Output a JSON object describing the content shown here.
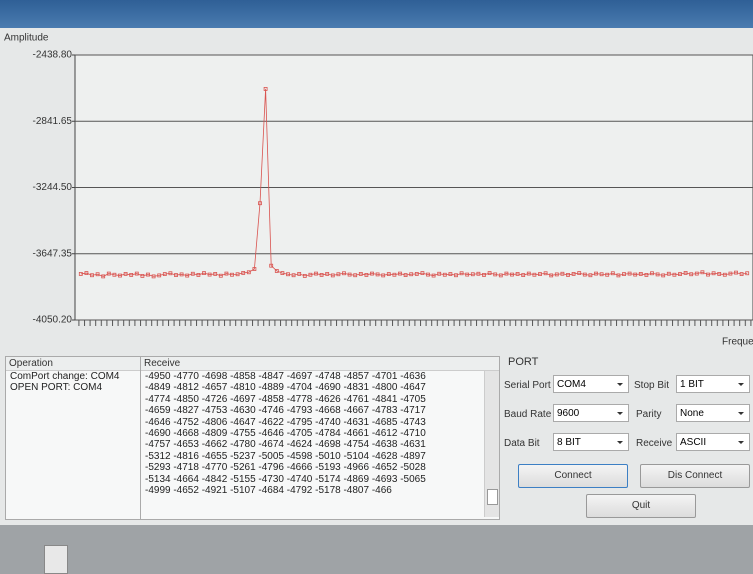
{
  "chart_data": {
    "type": "line",
    "y_label": "Amplitude",
    "x_label": "Freque",
    "color": "#d9534f",
    "ylim": [
      -4050.2,
      -2438.8
    ],
    "yticks": [
      {
        "value": -4050.2,
        "label": "-4050.20"
      },
      {
        "value": -3647.35,
        "label": "-3647.35"
      },
      {
        "value": -3244.5,
        "label": "-3244.50"
      },
      {
        "value": -2841.65,
        "label": "-2841.65"
      },
      {
        "value": -2438.8,
        "label": "-2438.80"
      }
    ],
    "grid": true,
    "values": [
      -3770,
      -3765,
      -3778,
      -3772,
      -3785,
      -3768,
      -3775,
      -3780,
      -3770,
      -3776,
      -3768,
      -3782,
      -3774,
      -3785,
      -3779,
      -3771,
      -3766,
      -3777,
      -3773,
      -3780,
      -3769,
      -3776,
      -3765,
      -3774,
      -3770,
      -3781,
      -3768,
      -3775,
      -3772,
      -3764,
      -3760,
      -3740,
      -3340,
      -2645,
      -3720,
      -3752,
      -3765,
      -3772,
      -3778,
      -3770,
      -3782,
      -3775,
      -3768,
      -3776,
      -3770,
      -3779,
      -3772,
      -3766,
      -3774,
      -3778,
      -3770,
      -3776,
      -3768,
      -3773,
      -3779,
      -3771,
      -3775,
      -3768,
      -3777,
      -3772,
      -3770,
      -3765,
      -3774,
      -3780,
      -3769,
      -3775,
      -3771,
      -3778,
      -3766,
      -3774,
      -3772,
      -3769,
      -3776,
      -3765,
      -3773,
      -3779,
      -3768,
      -3774,
      -3770,
      -3777,
      -3768,
      -3775,
      -3771,
      -3766,
      -3779,
      -3773,
      -3769,
      -3776,
      -3770,
      -3765,
      -3774,
      -3778,
      -3768,
      -3772,
      -3775,
      -3766,
      -3779,
      -3771,
      -3768,
      -3774,
      -3770,
      -3776,
      -3766,
      -3773,
      -3779,
      -3769,
      -3775,
      -3771,
      -3764,
      -3772,
      -3768,
      -3760,
      -3774,
      -3766,
      -3770,
      -3775,
      -3768,
      -3762,
      -3771,
      -3766
    ]
  },
  "operation": {
    "header": "Operation",
    "lines": [
      "ComPort change: COM4",
      "OPEN PORT: COM4"
    ]
  },
  "receive": {
    "header": "Receive",
    "lines": [
      "-4950 -4770 -4698 -4858 -4847 -4697 -4748 -4857 -4701 -4636",
      "-4849 -4812 -4657 -4810 -4889 -4704 -4690 -4831 -4800 -4647",
      "-4774 -4850 -4726 -4697 -4858 -4778 -4626 -4761 -4841 -4705",
      "-4659 -4827 -4753 -4630 -4746 -4793 -4668 -4667 -4783 -4717",
      "-4646 -4752 -4806 -4647 -4622 -4795 -4740 -4631 -4685 -4743",
      "-4690 -4668 -4809 -4755 -4646 -4705 -4784 -4661 -4612 -4710",
      "-4757 -4653 -4662 -4780 -4674 -4624 -4698 -4754 -4638 -4631",
      "-5312 -4816 -4655 -5237 -5005 -4598 -5010 -5104 -4628 -4897",
      "-5293 -4718 -4770 -5261 -4796 -4666 -5193 -4966 -4652 -5028",
      "-5134 -4664 -4842 -5155 -4730 -4740 -5174 -4869 -4693 -5065",
      "-4999 -4652 -4921 -5107 -4684 -4792 -5178 -4807 -466"
    ]
  },
  "port": {
    "header": "PORT",
    "serial_port": {
      "label": "Serial Port",
      "value": "COM4"
    },
    "stop_bit": {
      "label": "Stop Bit",
      "value": "1 BIT"
    },
    "baud_rate": {
      "label": "Baud Rate",
      "value": "9600"
    },
    "parity": {
      "label": "Parity",
      "value": "None"
    },
    "data_bit": {
      "label": "Data Bit",
      "value": "8 BIT"
    },
    "receive": {
      "label": "Receive",
      "value": "ASCII"
    }
  },
  "buttons": {
    "connect": "Connect",
    "disconnect": "Dis Connect",
    "quit": "Quit"
  }
}
